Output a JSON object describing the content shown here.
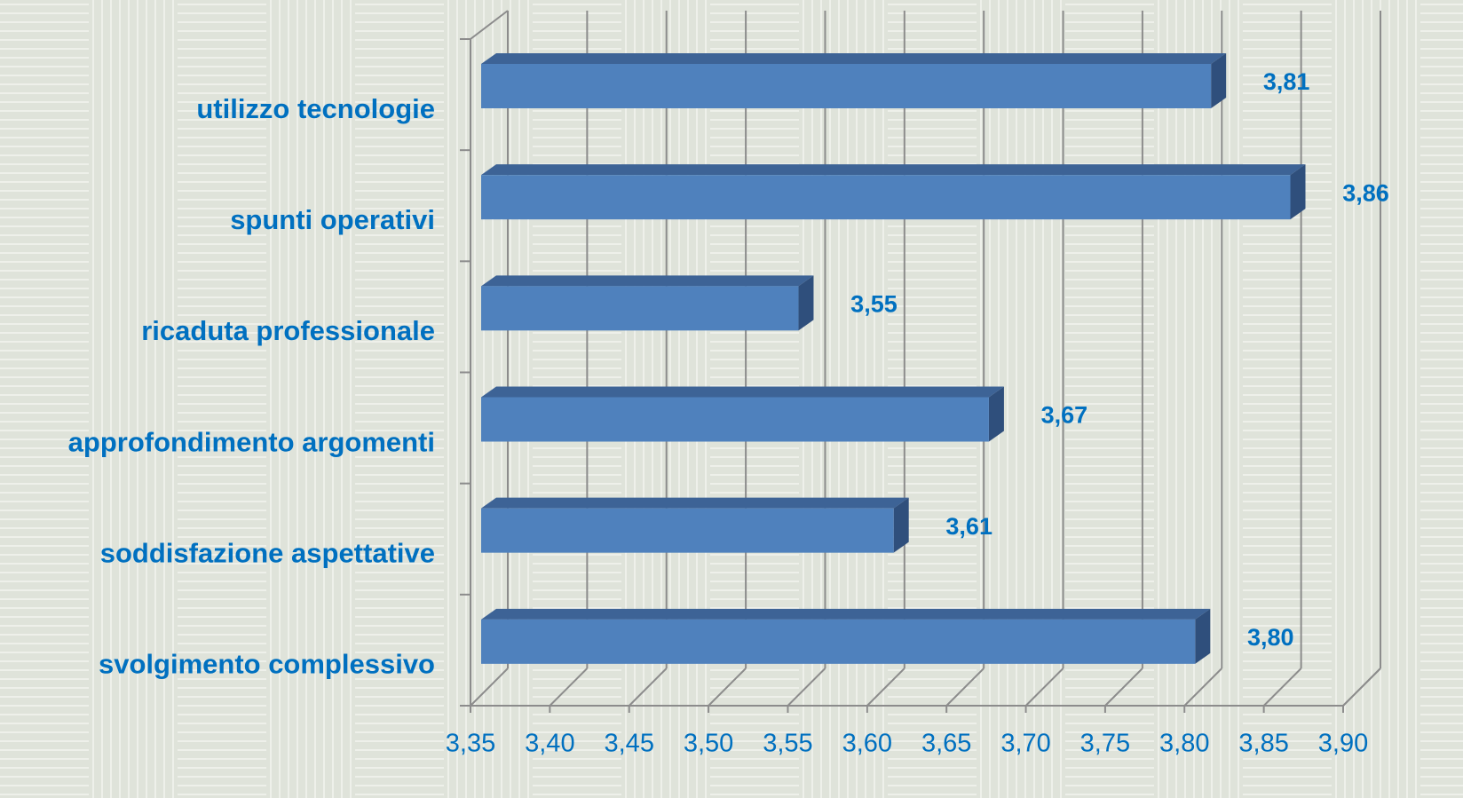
{
  "chart_data": {
    "type": "bar3d_horizontal",
    "categories": [
      "utilizzo tecnologie",
      "spunti operativi",
      "ricaduta professionale",
      "approfondimento argomenti",
      "soddisfazione aspettative",
      "svolgimento complessivo"
    ],
    "values": [
      3.81,
      3.86,
      3.55,
      3.67,
      3.61,
      3.8
    ],
    "value_labels": [
      "3,81",
      "3,86",
      "3,55",
      "3,67",
      "3,61",
      "3,80"
    ],
    "color": "#4f81bd",
    "xlim": [
      3.35,
      3.9
    ],
    "xticks": [
      {
        "value": 3.35,
        "label": "3,35"
      },
      {
        "value": 3.4,
        "label": "3,40"
      },
      {
        "value": 3.45,
        "label": "3,45"
      },
      {
        "value": 3.5,
        "label": "3,50"
      },
      {
        "value": 3.55,
        "label": "3,55"
      },
      {
        "value": 3.6,
        "label": "3,60"
      },
      {
        "value": 3.65,
        "label": "3,65"
      },
      {
        "value": 3.7,
        "label": "3,70"
      },
      {
        "value": 3.75,
        "label": "3,75"
      },
      {
        "value": 3.8,
        "label": "3,80"
      },
      {
        "value": 3.85,
        "label": "3,85"
      },
      {
        "value": 3.9,
        "label": "3,90"
      }
    ],
    "grid": true
  }
}
